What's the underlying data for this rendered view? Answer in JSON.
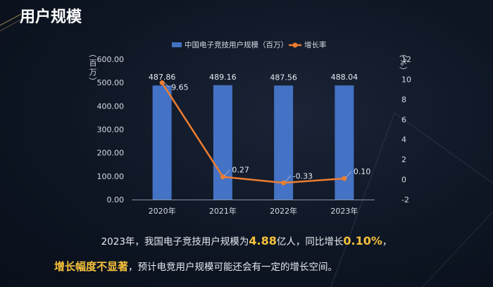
{
  "title": "用户规模",
  "chart_data": {
    "type": "bar",
    "categories": [
      "2020年",
      "2021年",
      "2022年",
      "2023年"
    ],
    "series": [
      {
        "name": "中国电子竞技用户规模（百万）",
        "type": "bar",
        "values": [
          487.86,
          489.16,
          487.56,
          488.04
        ],
        "labels": [
          "487.86",
          "489.16",
          "487.56",
          "488.04"
        ],
        "color": "#4472c4",
        "axis": "left"
      },
      {
        "name": "增长率",
        "type": "line",
        "values": [
          9.65,
          0.27,
          -0.33,
          0.1
        ],
        "labels": [
          "9.65",
          "0.27",
          "-0.33",
          "0.10"
        ],
        "color": "#ed7d31",
        "axis": "right"
      }
    ],
    "y_left": {
      "label": "（百万）",
      "min": 0,
      "max": 600,
      "step": 100,
      "ticks": [
        "0.00",
        "100.00",
        "200.00",
        "300.00",
        "400.00",
        "500.00",
        "600.00"
      ]
    },
    "y_right": {
      "label": "（%）",
      "min": -2,
      "max": 12,
      "step": 2,
      "ticks": [
        "-2",
        "0",
        "2",
        "4",
        "6",
        "8",
        "10",
        "12"
      ]
    },
    "legend_position": "top-center",
    "grid": false
  },
  "caption": {
    "line1_a": "2023年，我国电子竞技用户规模为",
    "line1_b": "4.88",
    "line1_c": "亿人，同比增长",
    "line1_d": "0.10%",
    "line1_e": "，",
    "line2_a": "增长幅度不显著",
    "line2_b": "，预计电竞用户规模可能还会有一定的增长空间。"
  }
}
